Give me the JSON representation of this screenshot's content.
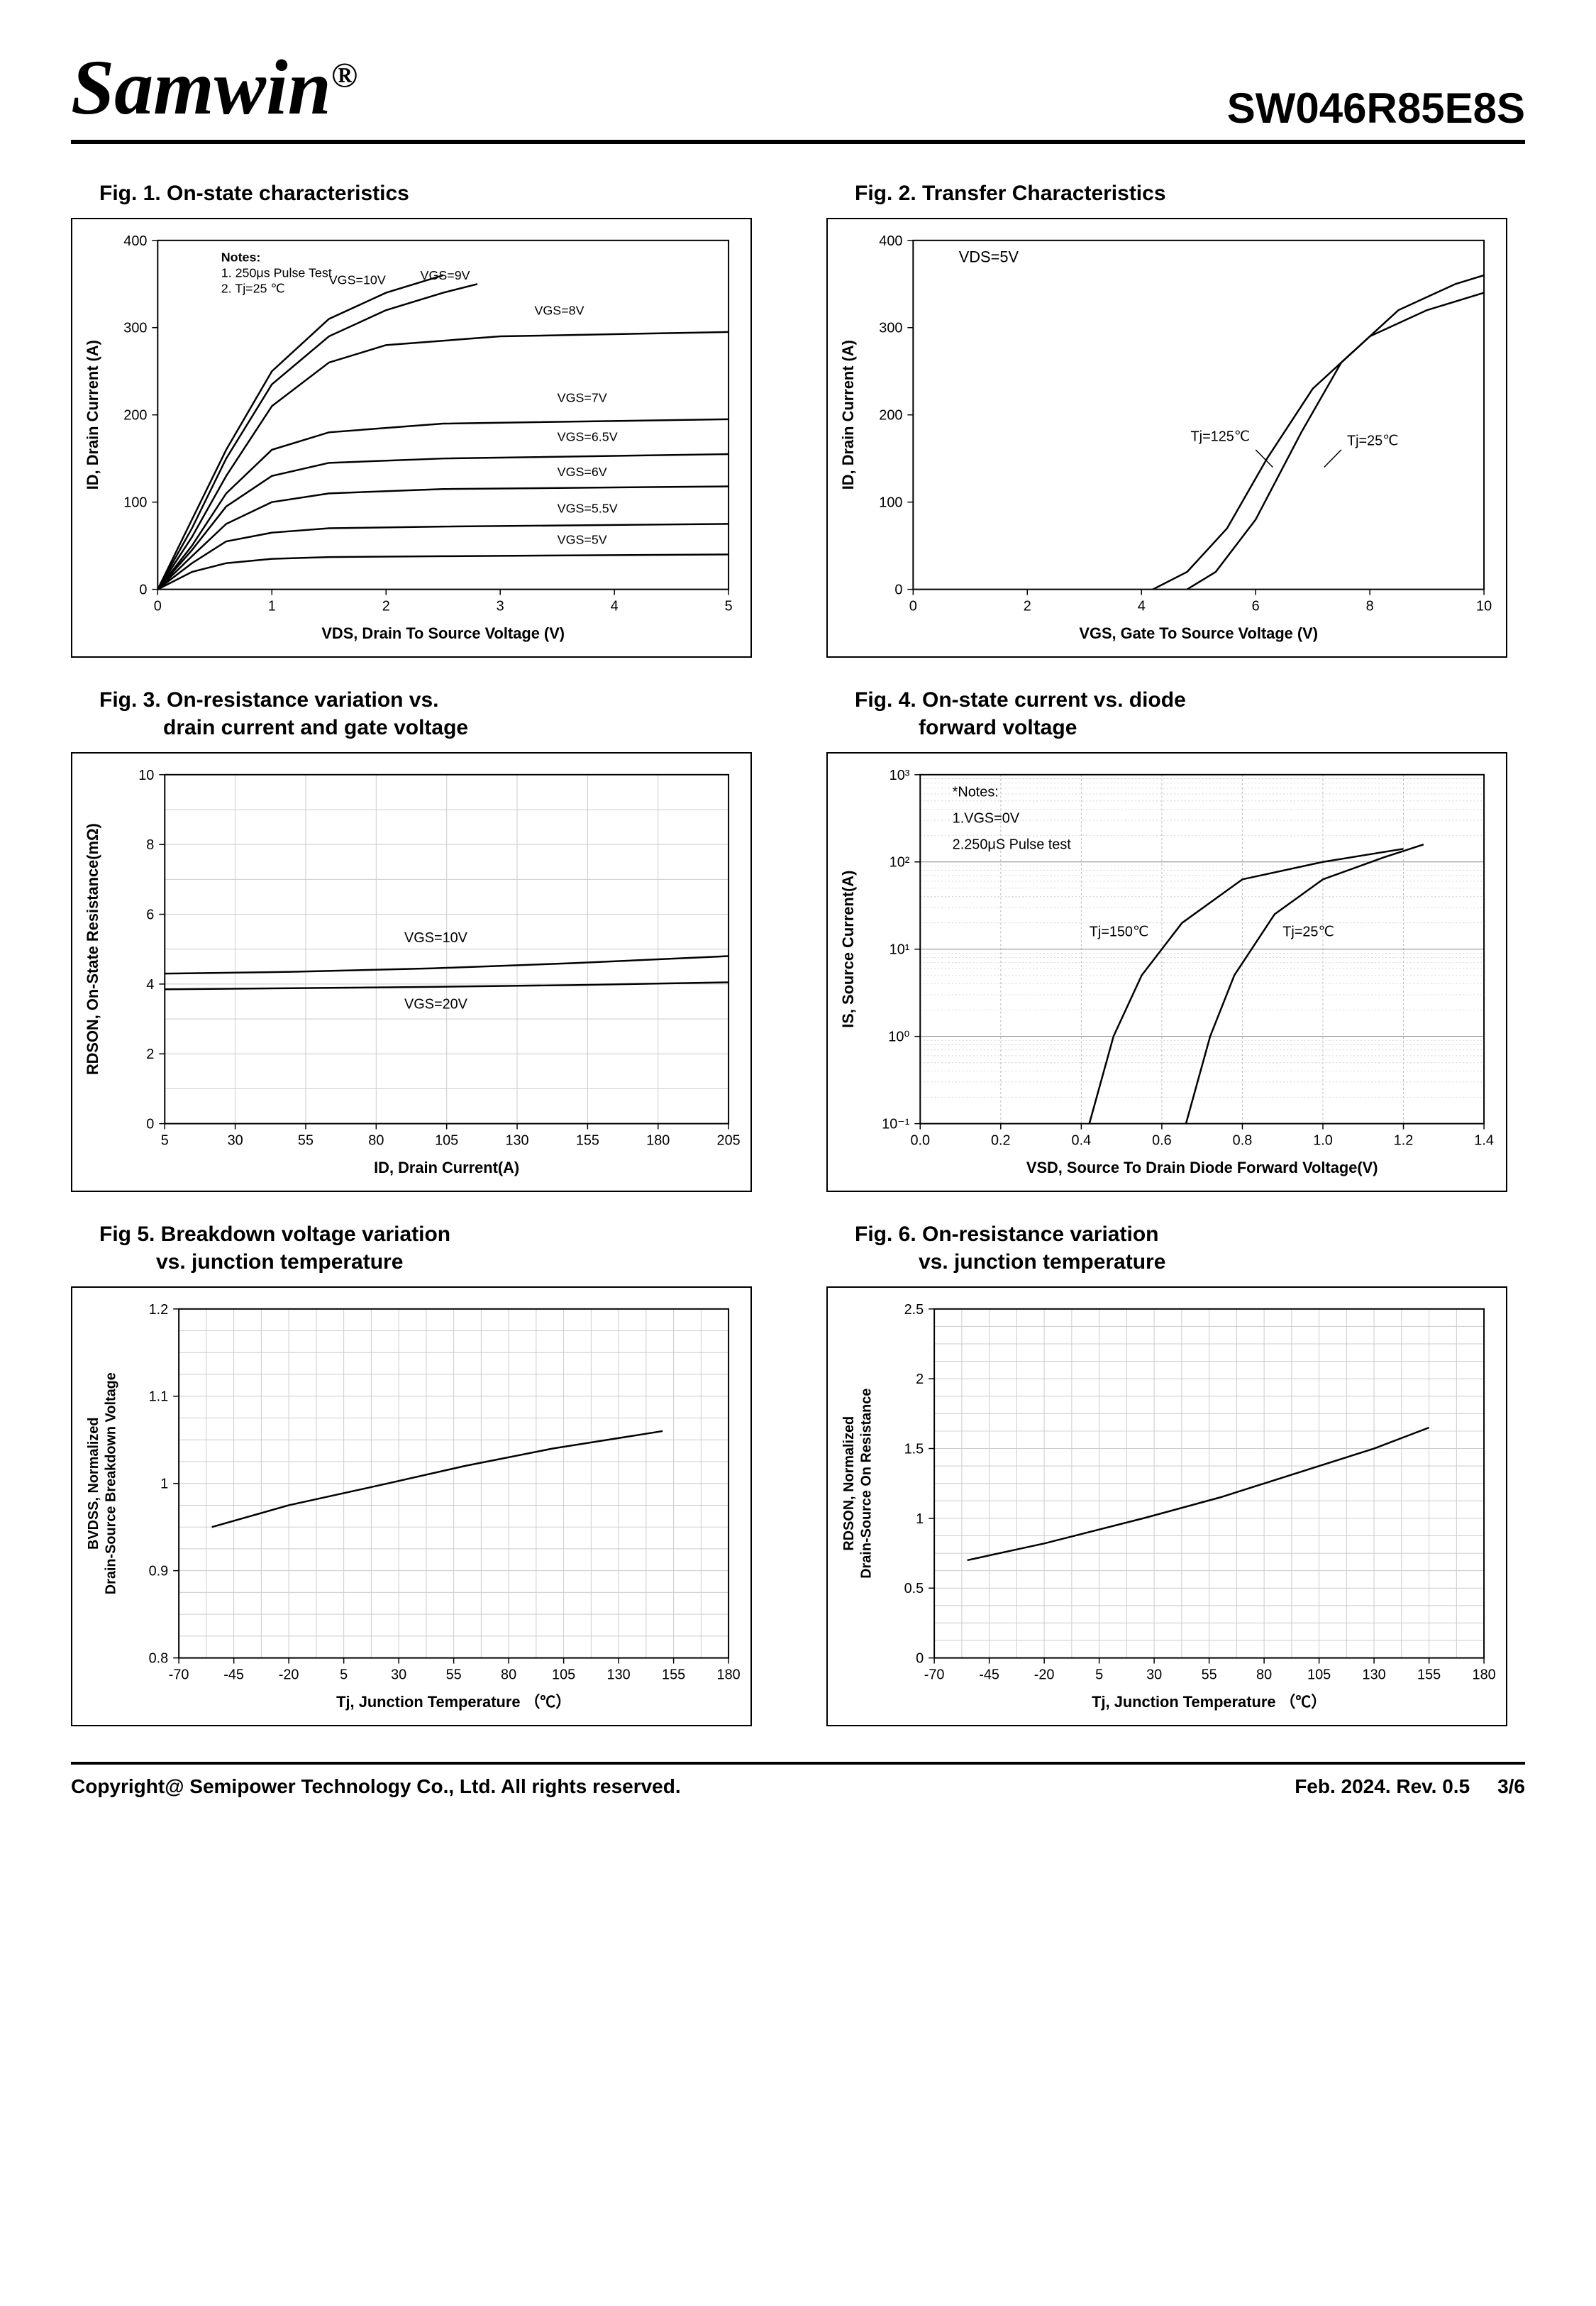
{
  "header": {
    "brand": "Samwin",
    "reg": "®",
    "partno": "SW046R85E8S"
  },
  "footer": {
    "copyright": "Copyright@ Semipower Technology Co., Ltd. All rights reserved.",
    "revision": "Feb. 2024. Rev. 0.5",
    "page": "3/6"
  },
  "fig1": {
    "type": "line",
    "title": "Fig. 1. On-state characteristics",
    "xlabel": "VDS, Drain To Source Voltage (V)",
    "ylabel": "ID, Drain Current (A)",
    "xlim": [
      0,
      5
    ],
    "xtick_step": 1,
    "ylim": [
      0,
      400
    ],
    "ytick_step": 100,
    "note1": "Notes:",
    "note2": "1. 250μs  Pulse Test",
    "note3": "2. Tj=25 ℃",
    "label_fontsize": 22,
    "tick_fontsize": 20,
    "series_labels": {
      "v10": "VGS=10V",
      "v9": "VGS=9V",
      "v8": "VGS=8V",
      "v7": "VGS=7V",
      "v65": "VGS=6.5V",
      "v6": "VGS=6V",
      "v55": "VGS=5.5V",
      "v5": "VGS=5V"
    },
    "series": {
      "v10": [
        [
          0,
          0
        ],
        [
          0.3,
          80
        ],
        [
          0.6,
          160
        ],
        [
          1.0,
          250
        ],
        [
          1.5,
          310
        ],
        [
          2.0,
          340
        ],
        [
          2.5,
          360
        ]
      ],
      "v9": [
        [
          0,
          0
        ],
        [
          0.3,
          70
        ],
        [
          0.6,
          150
        ],
        [
          1.0,
          235
        ],
        [
          1.5,
          290
        ],
        [
          2.0,
          320
        ],
        [
          2.5,
          340
        ],
        [
          2.8,
          350
        ]
      ],
      "v8": [
        [
          0,
          0
        ],
        [
          0.3,
          60
        ],
        [
          0.6,
          130
        ],
        [
          1.0,
          210
        ],
        [
          1.5,
          260
        ],
        [
          2.0,
          280
        ],
        [
          3.0,
          290
        ],
        [
          5.0,
          295
        ]
      ],
      "v7": [
        [
          0,
          0
        ],
        [
          0.3,
          50
        ],
        [
          0.6,
          110
        ],
        [
          1.0,
          160
        ],
        [
          1.5,
          180
        ],
        [
          2.5,
          190
        ],
        [
          5.0,
          195
        ]
      ],
      "v65": [
        [
          0,
          0
        ],
        [
          0.3,
          45
        ],
        [
          0.6,
          95
        ],
        [
          1.0,
          130
        ],
        [
          1.5,
          145
        ],
        [
          2.5,
          150
        ],
        [
          5.0,
          155
        ]
      ],
      "v6": [
        [
          0,
          0
        ],
        [
          0.3,
          38
        ],
        [
          0.6,
          75
        ],
        [
          1.0,
          100
        ],
        [
          1.5,
          110
        ],
        [
          2.5,
          115
        ],
        [
          5.0,
          118
        ]
      ],
      "v55": [
        [
          0,
          0
        ],
        [
          0.3,
          30
        ],
        [
          0.6,
          55
        ],
        [
          1.0,
          65
        ],
        [
          1.5,
          70
        ],
        [
          2.5,
          72
        ],
        [
          5.0,
          75
        ]
      ],
      "v5": [
        [
          0,
          0
        ],
        [
          0.3,
          20
        ],
        [
          0.6,
          30
        ],
        [
          1.0,
          35
        ],
        [
          1.5,
          37
        ],
        [
          2.5,
          38
        ],
        [
          5.0,
          40
        ]
      ]
    },
    "grid": false,
    "line_color": "#000000",
    "background_color": "#ffffff"
  },
  "fig2": {
    "type": "line",
    "title": "Fig. 2. Transfer Characteristics",
    "xlabel": "VGS,  Gate To Source Voltage (V)",
    "ylabel": "ID,  Drain Current (A)",
    "xlim": [
      0,
      10
    ],
    "xtick_step": 2,
    "ylim": [
      0,
      400
    ],
    "ytick_step": 100,
    "annotation": "VDS=5V",
    "label_t125": "Tj=125℃",
    "label_t25": "Tj=25℃",
    "series": {
      "t125": [
        [
          4.2,
          0
        ],
        [
          4.8,
          20
        ],
        [
          5.5,
          70
        ],
        [
          6.2,
          150
        ],
        [
          7.0,
          230
        ],
        [
          8.0,
          290
        ],
        [
          9.0,
          320
        ],
        [
          10.0,
          340
        ]
      ],
      "t25": [
        [
          4.8,
          0
        ],
        [
          5.3,
          20
        ],
        [
          6.0,
          80
        ],
        [
          6.8,
          180
        ],
        [
          7.5,
          260
        ],
        [
          8.5,
          320
        ],
        [
          9.5,
          350
        ],
        [
          10.0,
          360
        ]
      ]
    },
    "grid": false,
    "line_color": "#000000"
  },
  "fig3": {
    "type": "line",
    "title_l1": "Fig. 3. On-resistance variation vs.",
    "title_l2": "drain current and gate voltage",
    "xlabel": "ID, Drain Current(A)",
    "ylabel": "RDSON, On-State Resistance(mΩ)",
    "xlim": [
      5,
      205
    ],
    "xtick_step": 25,
    "ylim": [
      0.0,
      10.0
    ],
    "ytick_step": 2.0,
    "label_v10": "VGS=10V",
    "label_v20": "VGS=20V",
    "series": {
      "v10": [
        [
          5,
          4.3
        ],
        [
          50,
          4.35
        ],
        [
          100,
          4.45
        ],
        [
          150,
          4.6
        ],
        [
          205,
          4.8
        ]
      ],
      "v20": [
        [
          5,
          3.85
        ],
        [
          50,
          3.88
        ],
        [
          100,
          3.92
        ],
        [
          150,
          3.97
        ],
        [
          205,
          4.05
        ]
      ]
    },
    "grid": true,
    "grid_color": "#cccccc",
    "line_color": "#000000"
  },
  "fig4": {
    "type": "line-logy",
    "title_l1": "Fig. 4. On-state current vs. diode",
    "title_l2": "forward voltage",
    "xlabel": "VSD, Source To Drain Diode Forward Voltage(V)",
    "ylabel": "IS, Source Current(A)",
    "xlim": [
      0.0,
      1.4
    ],
    "xtick_step": 0.2,
    "ylim_exp": [
      -1,
      3
    ],
    "ytick_labels": [
      "10⁻¹",
      "10⁰",
      "10¹",
      "10²",
      "10³"
    ],
    "note1": "*Notes:",
    "note2": "1.VGS=0V",
    "note3": "2.250μS Pulse test",
    "label_t150": "Tj=150℃",
    "label_t25": "Tj=25℃",
    "series": {
      "t150": [
        [
          0.42,
          -1
        ],
        [
          0.48,
          0
        ],
        [
          0.55,
          0.7
        ],
        [
          0.65,
          1.3
        ],
        [
          0.8,
          1.8
        ],
        [
          1.0,
          2.0
        ],
        [
          1.2,
          2.15
        ]
      ],
      "t25": [
        [
          0.66,
          -1
        ],
        [
          0.72,
          0
        ],
        [
          0.78,
          0.7
        ],
        [
          0.88,
          1.4
        ],
        [
          1.0,
          1.8
        ],
        [
          1.15,
          2.05
        ],
        [
          1.25,
          2.2
        ]
      ]
    },
    "grid": true,
    "grid_color": "#aaaaaa",
    "line_color": "#000000"
  },
  "fig5": {
    "type": "line",
    "title_l1": "Fig 5. Breakdown voltage variation",
    "title_l2": "vs. junction temperature",
    "xlabel": "Tj, Junction Temperature （℃）",
    "ylabel_l1": "BVDSS, Normalized",
    "ylabel_l2": "Drain-Source Breakdown Voltage",
    "xlim": [
      -70,
      180
    ],
    "xtick_step": 25,
    "ylim": [
      0.8,
      1.2
    ],
    "ytick_step": 0.1,
    "series": {
      "main": [
        [
          -55,
          0.95
        ],
        [
          -20,
          0.975
        ],
        [
          25,
          1.0
        ],
        [
          60,
          1.02
        ],
        [
          100,
          1.04
        ],
        [
          150,
          1.06
        ]
      ]
    },
    "grid": true,
    "grid_color": "#cccccc",
    "line_color": "#000000"
  },
  "fig6": {
    "type": "line",
    "title_l1": "Fig. 6. On-resistance variation",
    "title_l2": "vs. junction temperature",
    "xlabel": "Tj, Junction Temperature （℃）",
    "ylabel_l1": "RDSON, Normalized",
    "ylabel_l2": "Drain-Source On Resistance",
    "xlim": [
      -70,
      180
    ],
    "xtick_step": 25,
    "ylim": [
      0.0,
      2.5
    ],
    "ytick_step": 0.5,
    "series": {
      "main": [
        [
          -55,
          0.7
        ],
        [
          -20,
          0.82
        ],
        [
          25,
          1.0
        ],
        [
          60,
          1.15
        ],
        [
          100,
          1.35
        ],
        [
          130,
          1.5
        ],
        [
          155,
          1.65
        ]
      ]
    },
    "grid": true,
    "grid_color": "#cccccc",
    "line_color": "#000000"
  }
}
